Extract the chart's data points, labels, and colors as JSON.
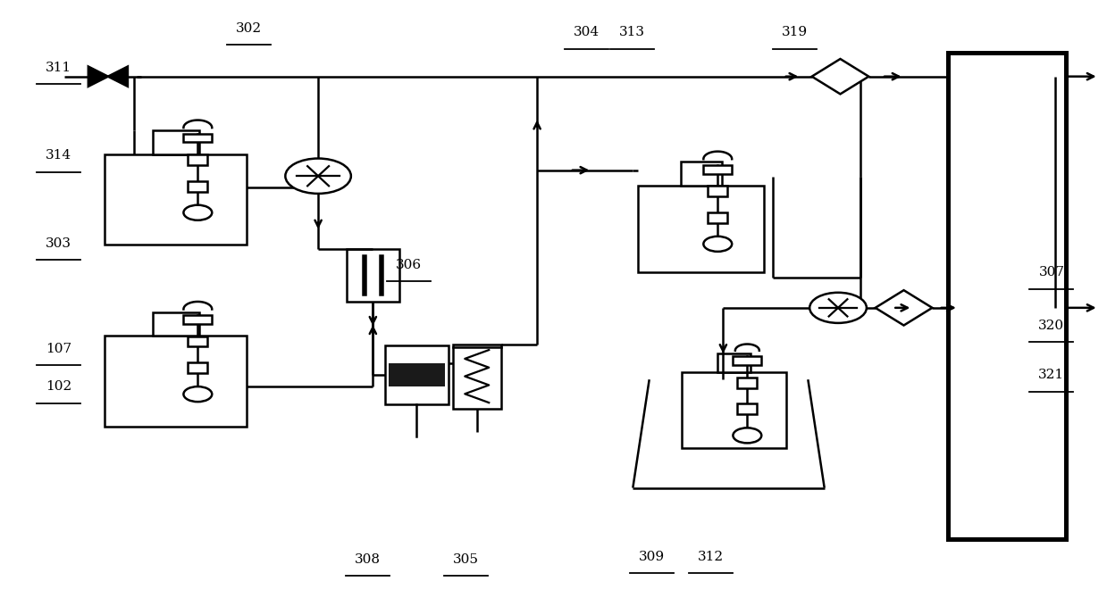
{
  "fig_width": 12.39,
  "fig_height": 6.7,
  "dpi": 100,
  "lw": 1.8,
  "lc": "#000000",
  "bg": "#ffffff",
  "labels": {
    "311": [
      0.048,
      0.895,
      "311"
    ],
    "314": [
      0.048,
      0.745,
      "314"
    ],
    "303": [
      0.048,
      0.595,
      "303"
    ],
    "302": [
      0.222,
      0.962,
      "302"
    ],
    "107": [
      0.048,
      0.415,
      "107"
    ],
    "102": [
      0.048,
      0.35,
      "102"
    ],
    "306": [
      0.368,
      0.558,
      "306"
    ],
    "308": [
      0.33,
      0.055,
      "308"
    ],
    "305": [
      0.42,
      0.055,
      "305"
    ],
    "304": [
      0.53,
      0.955,
      "304"
    ],
    "313": [
      0.572,
      0.955,
      "313"
    ],
    "319": [
      0.72,
      0.955,
      "319"
    ],
    "307": [
      0.955,
      0.545,
      "307"
    ],
    "309": [
      0.59,
      0.06,
      "309"
    ],
    "312": [
      0.644,
      0.06,
      "312"
    ],
    "320": [
      0.955,
      0.455,
      "320"
    ],
    "321": [
      0.955,
      0.37,
      "321"
    ]
  }
}
